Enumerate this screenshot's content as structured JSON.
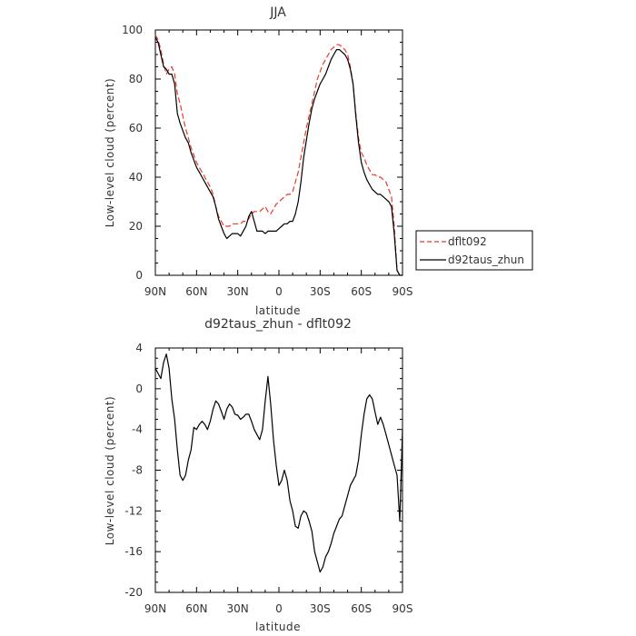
{
  "chart_data": [
    {
      "type": "line",
      "title": "JJA",
      "xlabel": "latitude",
      "ylabel": "Low-level cloud (percent)",
      "x_ticks": [
        "90N",
        "60N",
        "30N",
        "0",
        "30S",
        "60S",
        "90S"
      ],
      "y_ticks": [
        "0",
        "20",
        "40",
        "60",
        "80",
        "100"
      ],
      "xlim": [
        90,
        -90
      ],
      "ylim": [
        0,
        100
      ],
      "legend_position": "right",
      "series": [
        {
          "name": "dflt092",
          "color": "#e8392c",
          "dash": "dashed",
          "x": [
            90,
            88,
            86,
            84,
            82,
            80,
            78,
            76,
            74,
            72,
            70,
            68,
            66,
            64,
            62,
            60,
            58,
            56,
            54,
            52,
            50,
            48,
            46,
            44,
            42,
            40,
            38,
            36,
            34,
            32,
            30,
            28,
            26,
            24,
            22,
            20,
            18,
            16,
            14,
            12,
            10,
            8,
            6,
            4,
            2,
            0,
            -2,
            -4,
            -6,
            -8,
            -10,
            -12,
            -14,
            -16,
            -18,
            -20,
            -22,
            -24,
            -26,
            -28,
            -30,
            -32,
            -34,
            -36,
            -38,
            -40,
            -42,
            -44,
            -46,
            -48,
            -50,
            -52,
            -54,
            -56,
            -58,
            -60,
            -62,
            -64,
            -66,
            -68,
            -70,
            -72,
            -74,
            -76,
            -78,
            -80,
            -82,
            -84,
            -86,
            -88,
            -90
          ],
          "values": [
            98,
            96,
            92,
            86,
            82,
            84,
            85,
            82,
            74,
            70,
            65,
            60,
            56,
            52,
            49,
            46,
            44,
            42,
            40,
            38,
            36,
            33,
            28,
            24,
            22,
            20,
            20,
            20,
            21,
            21,
            21,
            21,
            22,
            22,
            23,
            25,
            26,
            26,
            26,
            27,
            28,
            26,
            25,
            27,
            29,
            30,
            31,
            32,
            33,
            33,
            34,
            38,
            42,
            48,
            54,
            60,
            65,
            70,
            75,
            80,
            83,
            86,
            88,
            90,
            92,
            93,
            94,
            94,
            93,
            92,
            90,
            85,
            78,
            66,
            56,
            50,
            48,
            45,
            43,
            41,
            41,
            40,
            40,
            39,
            38,
            35,
            32,
            20,
            2,
            0,
            0
          ]
        },
        {
          "name": "d92taus_zhun",
          "color": "#000000",
          "dash": "solid",
          "x": [
            90,
            88,
            86,
            84,
            82,
            80,
            78,
            76,
            74,
            72,
            70,
            68,
            66,
            64,
            62,
            60,
            58,
            56,
            54,
            52,
            50,
            48,
            46,
            44,
            42,
            40,
            38,
            36,
            34,
            32,
            30,
            28,
            26,
            24,
            22,
            20,
            18,
            16,
            14,
            12,
            10,
            8,
            6,
            4,
            2,
            0,
            -2,
            -4,
            -6,
            -8,
            -10,
            -12,
            -14,
            -16,
            -18,
            -20,
            -22,
            -24,
            -26,
            -28,
            -30,
            -32,
            -34,
            -36,
            -38,
            -40,
            -42,
            -44,
            -46,
            -48,
            -50,
            -52,
            -54,
            -56,
            -58,
            -60,
            -62,
            -64,
            -66,
            -68,
            -70,
            -72,
            -74,
            -76,
            -78,
            -80,
            -82,
            -84,
            -86,
            -88,
            -90
          ],
          "values": [
            97,
            95,
            90,
            85,
            84,
            82,
            82,
            78,
            66,
            62,
            59,
            56,
            54,
            50,
            47,
            44,
            42,
            40,
            38,
            36,
            34,
            32,
            28,
            23,
            20,
            17,
            15,
            16,
            17,
            17,
            17,
            16,
            18,
            20,
            24,
            26,
            22,
            18,
            18,
            18,
            17,
            18,
            18,
            18,
            18,
            19,
            20,
            21,
            21,
            22,
            22,
            25,
            30,
            38,
            48,
            55,
            62,
            68,
            72,
            75,
            78,
            80,
            82,
            85,
            88,
            90,
            92,
            92,
            91,
            90,
            88,
            84,
            78,
            65,
            54,
            46,
            42,
            39,
            37,
            35,
            34,
            33,
            33,
            32,
            31,
            30,
            28,
            17,
            2,
            0,
            0
          ]
        }
      ]
    },
    {
      "type": "line",
      "title": "d92taus_zhun - dflt092",
      "xlabel": "latitude",
      "ylabel": "Low-level cloud (percent)",
      "x_ticks": [
        "90N",
        "60N",
        "30N",
        "0",
        "30S",
        "60S",
        "90S"
      ],
      "y_ticks": [
        "4",
        "0",
        "-4",
        "-8",
        "-12",
        "-16",
        "-20"
      ],
      "xlim": [
        90,
        -90
      ],
      "ylim": [
        -20,
        4
      ],
      "series": [
        {
          "color": "#000000",
          "dash": "solid",
          "x": [
            90,
            88,
            86,
            84,
            82,
            80,
            78,
            76,
            74,
            72,
            70,
            68,
            66,
            64,
            62,
            60,
            58,
            56,
            54,
            52,
            50,
            48,
            46,
            44,
            42,
            40,
            38,
            36,
            34,
            32,
            30,
            28,
            26,
            24,
            22,
            20,
            18,
            16,
            14,
            12,
            10,
            8,
            6,
            4,
            2,
            0,
            -2,
            -4,
            -6,
            -8,
            -10,
            -12,
            -14,
            -16,
            -18,
            -20,
            -22,
            -24,
            -26,
            -28,
            -30,
            -32,
            -34,
            -36,
            -38,
            -40,
            -42,
            -44,
            -46,
            -48,
            -50,
            -52,
            -54,
            -56,
            -58,
            -60,
            -62,
            -64,
            -66,
            -68,
            -70,
            -72,
            -74,
            -76,
            -78,
            -80,
            -82,
            -84,
            -86,
            -88,
            -90
          ],
          "values": [
            2,
            1.5,
            1,
            2.6,
            3.4,
            2,
            -1,
            -3,
            -6,
            -8.5,
            -9,
            -8.5,
            -7,
            -6,
            -3.8,
            -4,
            -3.5,
            -3.2,
            -3.5,
            -4,
            -3.2,
            -2,
            -1.2,
            -1.5,
            -2.2,
            -3,
            -2,
            -1.5,
            -1.8,
            -2.5,
            -2.6,
            -3,
            -2.8,
            -2.5,
            -2.5,
            -3.2,
            -4,
            -4.5,
            -5,
            -4,
            -1.2,
            1.2,
            -1.5,
            -5,
            -7.5,
            -9.5,
            -9,
            -8,
            -9,
            -11,
            -12,
            -13.5,
            -13.7,
            -12.5,
            -12,
            -12.2,
            -13,
            -14,
            -16,
            -17,
            -18,
            -17.5,
            -16.5,
            -16,
            -15.2,
            -14.2,
            -13.5,
            -12.8,
            -12.5,
            -11.5,
            -10.5,
            -9.5,
            -9,
            -8.5,
            -7,
            -4.5,
            -2.5,
            -1,
            -0.6,
            -1,
            -2.3,
            -3.5,
            -2.8,
            -3.5,
            -4.5,
            -5.5,
            -6.5,
            -7.5,
            -8.5,
            -13,
            -4
          ]
        }
      ]
    }
  ]
}
